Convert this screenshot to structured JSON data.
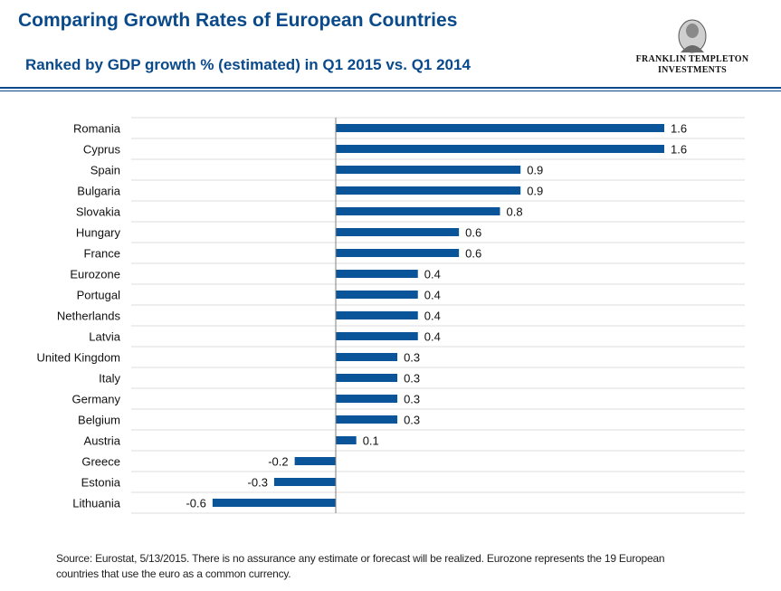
{
  "header": {
    "title": "Comparing Growth Rates of European Countries",
    "subtitle": "Ranked by GDP growth % (estimated) in Q1 2015 vs. Q1 2014"
  },
  "logo": {
    "line1": "FRANKLIN TEMPLETON",
    "line2": "INVESTMENTS"
  },
  "colors": {
    "bar": "#0a559a",
    "brand": "#0a4a8a"
  },
  "chart_data": {
    "type": "bar",
    "orientation": "horizontal",
    "categories": [
      "Romania",
      "Cyprus",
      "Spain",
      "Bulgaria",
      "Slovakia",
      "Hungary",
      "France",
      "Eurozone",
      "Portugal",
      "Netherlands",
      "Latvia",
      "United Kingdom",
      "Italy",
      "Germany",
      "Belgium",
      "Austria",
      "Greece",
      "Estonia",
      "Lithuania"
    ],
    "values": [
      1.6,
      1.6,
      0.9,
      0.9,
      0.8,
      0.6,
      0.6,
      0.4,
      0.4,
      0.4,
      0.4,
      0.3,
      0.3,
      0.3,
      0.3,
      0.1,
      -0.2,
      -0.3,
      -0.6
    ],
    "value_labels": [
      "1.6",
      "1.6",
      "0.9",
      "0.9",
      "0.8",
      "0.6",
      "0.6",
      "0.4",
      "0.4",
      "0.4",
      "0.4",
      "0.3",
      "0.3",
      "0.3",
      "0.3",
      "0.1",
      "-0.2",
      "-0.3",
      "-0.6"
    ],
    "xlim": [
      -0.6,
      1.6
    ],
    "grid": "horizontal",
    "legend": "none"
  },
  "footer": {
    "source": "Source: Eurostat, 5/13/2015. There is no assurance any estimate or forecast will be realized. Eurozone represents the 19 European countries that use the euro as a common currency."
  }
}
